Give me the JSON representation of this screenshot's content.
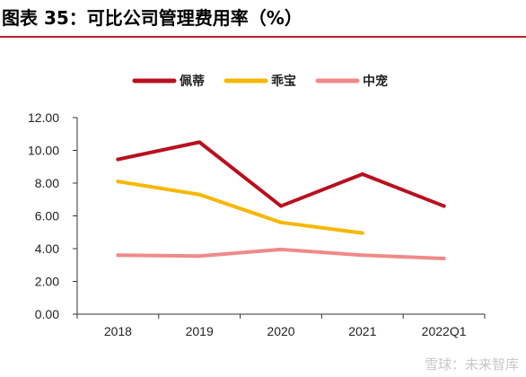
{
  "figure_title": "图表 35：可比公司管理费用率（%）",
  "watermark": "雪球：未来智库",
  "chart_data": {
    "type": "line",
    "categories": [
      "2018",
      "2019",
      "2020",
      "2021",
      "2022Q1"
    ],
    "series": [
      {
        "name": "佩蒂",
        "color": "#b8101e",
        "values": [
          9.45,
          10.5,
          6.6,
          8.55,
          6.6
        ]
      },
      {
        "name": "乖宝",
        "color": "#f5b800",
        "values": [
          8.1,
          7.3,
          5.6,
          4.95,
          null
        ]
      },
      {
        "name": "中宠",
        "color": "#f08a8a",
        "values": [
          3.6,
          3.55,
          3.95,
          3.6,
          3.4
        ]
      }
    ],
    "ylim": [
      0,
      12
    ],
    "yticks": [
      "0.00",
      "2.00",
      "4.00",
      "6.00",
      "8.00",
      "10.00",
      "12.00"
    ],
    "legend_position": "top",
    "grid": false
  }
}
